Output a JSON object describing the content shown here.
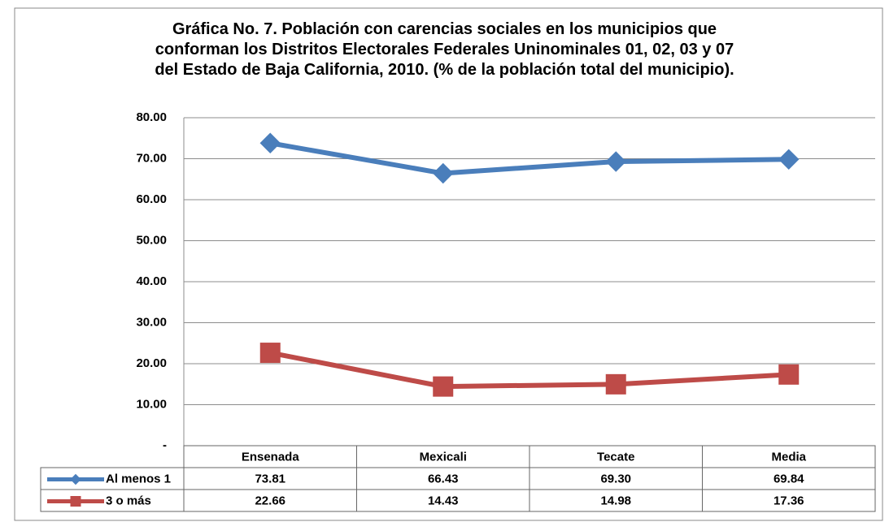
{
  "chart_data": {
    "type": "line",
    "title": "Gráfica No. 7. Población con carencias sociales en los municipios que\nconforman los Distritos Electorales Federales Uninominales 01, 02, 03 y 07\ndel Estado de Baja California, 2010. (% de la población total del municipio).",
    "categories": [
      "Ensenada",
      "Mexicali",
      "Tecate",
      "Media"
    ],
    "series": [
      {
        "name": "Al menos 1",
        "color": "#4a7ebb",
        "marker": "diamond",
        "values": [
          73.81,
          66.43,
          69.3,
          69.84
        ],
        "value_labels": [
          "73.81",
          "66.43",
          "69.30",
          "69.84"
        ]
      },
      {
        "name": "3 o más",
        "color": "#be4b48",
        "marker": "square",
        "values": [
          22.66,
          14.43,
          14.98,
          17.36
        ],
        "value_labels": [
          "22.66",
          "14.43",
          "14.98",
          "17.36"
        ]
      }
    ],
    "ylim": [
      0,
      80
    ],
    "yticks": [
      {
        "value": 0,
        "label": "-"
      },
      {
        "value": 10,
        "label": "10.00"
      },
      {
        "value": 20,
        "label": "20.00"
      },
      {
        "value": 30,
        "label": "30.00"
      },
      {
        "value": 40,
        "label": "40.00"
      },
      {
        "value": 50,
        "label": "50.00"
      },
      {
        "value": 60,
        "label": "60.00"
      },
      {
        "value": 70,
        "label": "70.00"
      },
      {
        "value": 80,
        "label": "80.00"
      }
    ],
    "grid": true
  }
}
